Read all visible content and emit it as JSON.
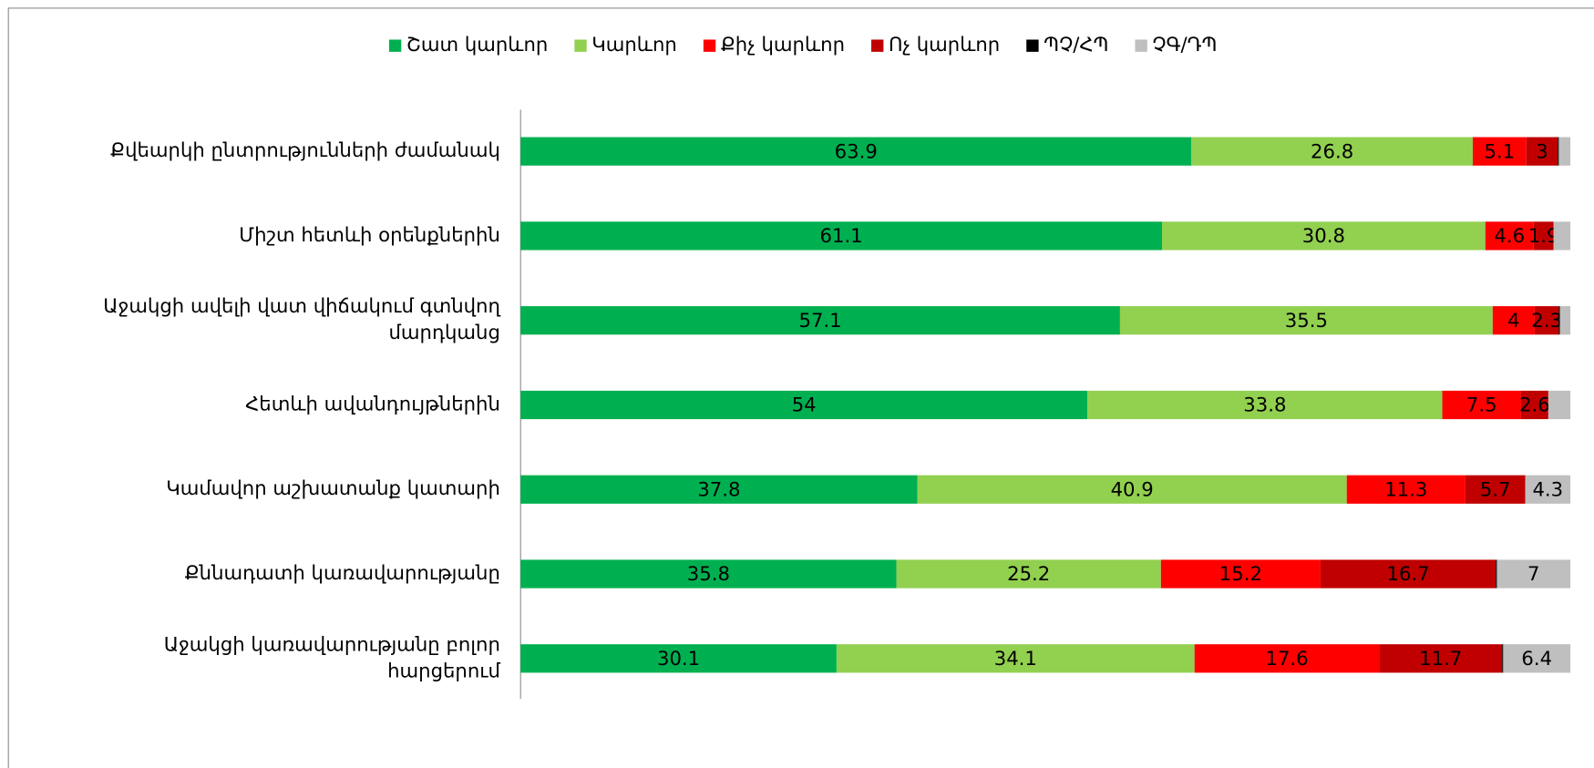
{
  "chart_data": {
    "type": "stacked_barh",
    "categories": [
      [
        "Քվեարկի ընտրությունների ժամանակ"
      ],
      [
        "Միշտ հետևի օրենքներին"
      ],
      [
        "Աջակցի ավելի վատ վիճակում գտնվող",
        "մարդկանց"
      ],
      [
        "Հետևի ավանդույթներին"
      ],
      [
        "Կամավոր աշխատանք կատարի"
      ],
      [
        "Քննադատի կառավարությանը"
      ],
      [
        "Աջակցի կառավարությանը բոլոր",
        "հարցերում"
      ]
    ],
    "series": [
      {
        "name": "Շատ կարևոր",
        "color": "#00b050",
        "values": [
          63.9,
          61.1,
          57.1,
          54,
          37.8,
          35.8,
          30.1
        ]
      },
      {
        "name": "Կարևոր",
        "color": "#92d050",
        "values": [
          26.8,
          30.8,
          35.5,
          33.8,
          40.9,
          25.2,
          34.1
        ]
      },
      {
        "name": "Քիչ կարևոր",
        "color": "#ff0000",
        "values": [
          5.1,
          4.6,
          4,
          7.5,
          11.3,
          15.2,
          17.6
        ]
      },
      {
        "name": "Ոչ կարևոր",
        "color": "#c00000",
        "values": [
          3,
          1.9,
          2.3,
          2.6,
          5.7,
          16.7,
          11.7
        ]
      },
      {
        "name": "ՊՉ/ՀՊ",
        "color": "#000000",
        "values": [
          0.1,
          0,
          0.1,
          0,
          0,
          0.1,
          0.1
        ],
        "value_labels": [
          null,
          null,
          null,
          null,
          null,
          null,
          null
        ]
      },
      {
        "name": "ՉԳ/ԴՊ",
        "color": "#bfbfbf",
        "values": [
          1.1,
          1.6,
          1,
          2.1,
          4.3,
          7,
          6.4
        ],
        "value_labels": [
          null,
          null,
          null,
          null,
          "4.3",
          "7",
          "6.4"
        ]
      }
    ],
    "xlim": [
      0,
      100
    ],
    "legend": "top"
  }
}
